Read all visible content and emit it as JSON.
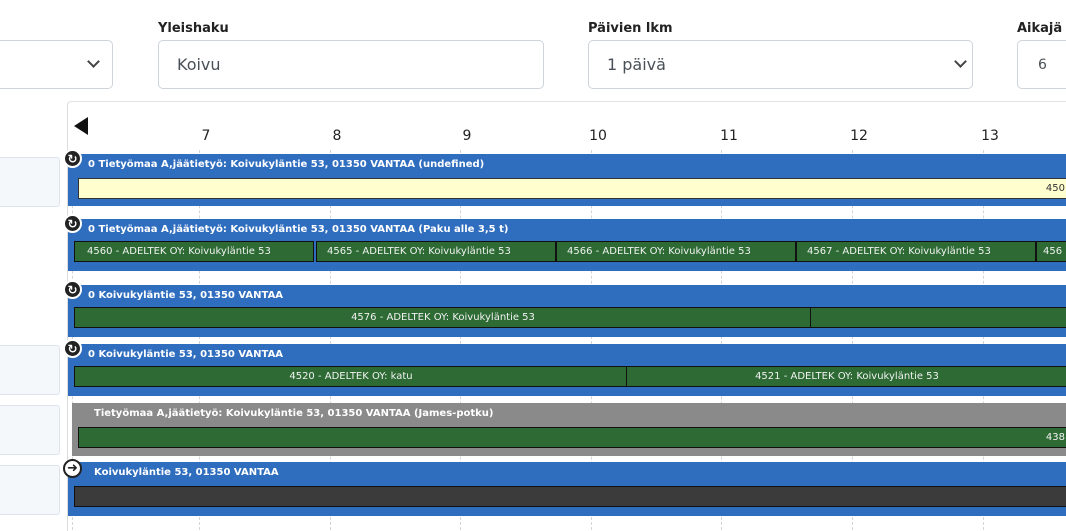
{
  "filters": {
    "general_search": {
      "label": "Yleishaku",
      "value": "Koivu"
    },
    "days_count": {
      "label": "Päivien lkm",
      "value": "1 päivä"
    },
    "time_order": {
      "label": "Aikajä",
      "value": "6"
    }
  },
  "timeline": {
    "ticks": [
      "7",
      "8",
      "9",
      "10",
      "11",
      "12",
      "13"
    ],
    "rows": [
      {
        "header": "0  Tietyömaa A,jäätietyö: Koivukyläntie 53, 01350 VANTAA (undefined)",
        "items": [
          "450"
        ]
      },
      {
        "header": "0  Tietyömaa A,jäätietyö: Koivukyläntie 53, 01350 VANTAA (Paku alle 3,5 t)",
        "items": [
          "4560 - ADELTEK OY: Koivukyläntie 53",
          "4565 - ADELTEK OY: Koivukyläntie 53",
          "4566 - ADELTEK OY: Koivukyläntie 53",
          "4567 - ADELTEK OY: Koivukyläntie 53",
          "456"
        ]
      },
      {
        "header": "0  Koivukyläntie 53, 01350 VANTAA",
        "items": [
          "4576 - ADELTEK OY: Koivukyläntie 53"
        ]
      },
      {
        "header": "0  Koivukyläntie 53, 01350 VANTAA",
        "items": [
          "4520 - ADELTEK OY: katu",
          "4521 - ADELTEK OY: Koivukyläntie 53"
        ]
      },
      {
        "header": "Tietyömaa A,jäätietyö: Koivukyläntie 53, 01350 VANTAA (James-potku)",
        "items": [
          "438"
        ]
      },
      {
        "header": "Koivukyläntie 53, 01350 VANTAA",
        "items": []
      }
    ]
  },
  "colors": {
    "row_header_blue": "#2f6dbf",
    "row_header_gray": "#8a8a8a",
    "bar_green": "#2d6a34",
    "bar_yellow": "#fffecf",
    "bar_dark": "#3b3b3b"
  },
  "icons": {
    "back_arrow": "triangle-left-icon",
    "refresh": "refresh-icon",
    "arrow_right": "arrow-right-circle-icon"
  }
}
